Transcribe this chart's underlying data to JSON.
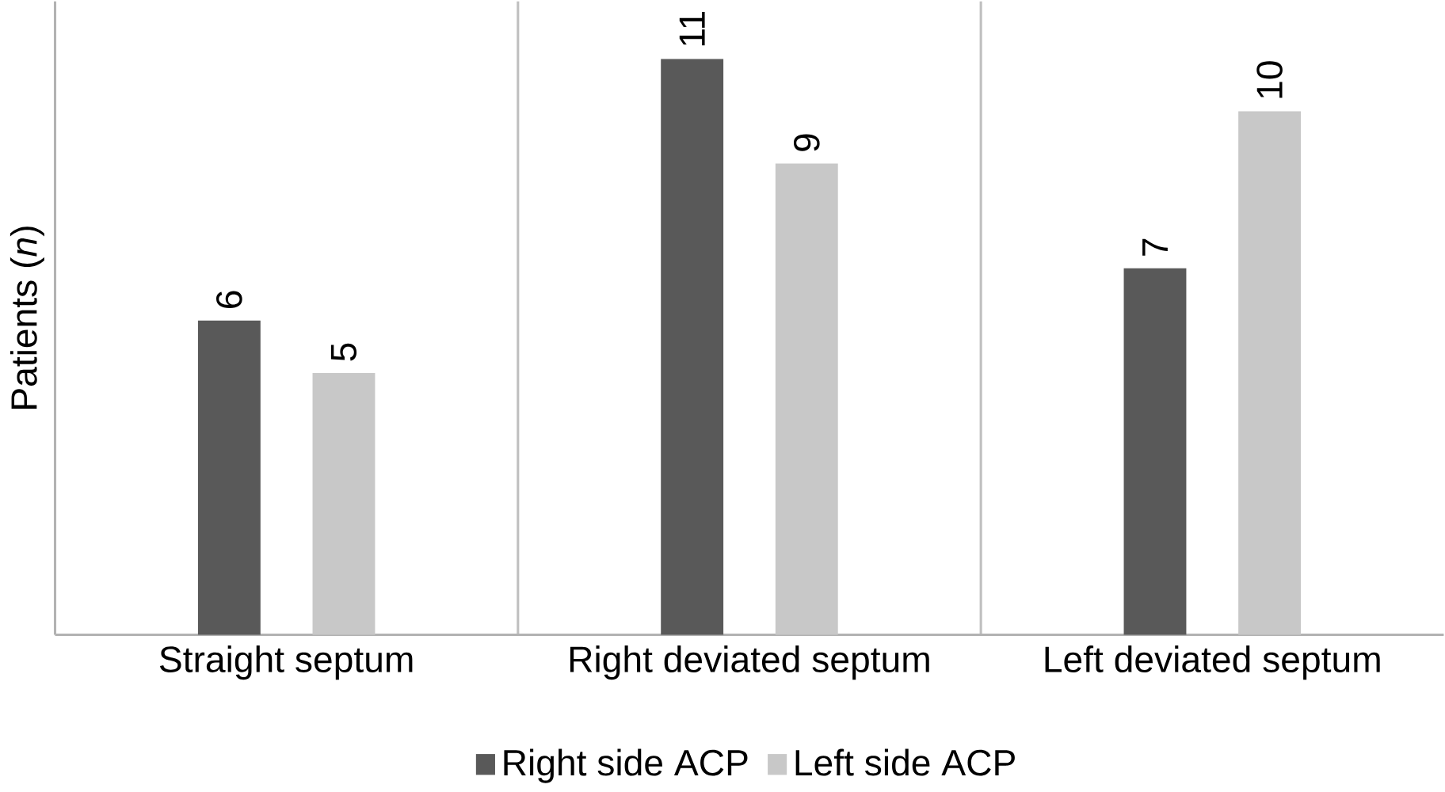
{
  "chart_data": {
    "type": "bar",
    "ylabel": "Patients (*n*)",
    "categories": [
      "Straight septum",
      "Right deviated septum",
      "Left deviated septum"
    ],
    "series": [
      {
        "name": "Right side ACP",
        "color": "#595959",
        "values": [
          6,
          11,
          7
        ]
      },
      {
        "name": "Left side ACP",
        "color": "#c8c8c8",
        "values": [
          5,
          9,
          10
        ]
      }
    ],
    "data_labels": true,
    "legend": "bottom"
  }
}
